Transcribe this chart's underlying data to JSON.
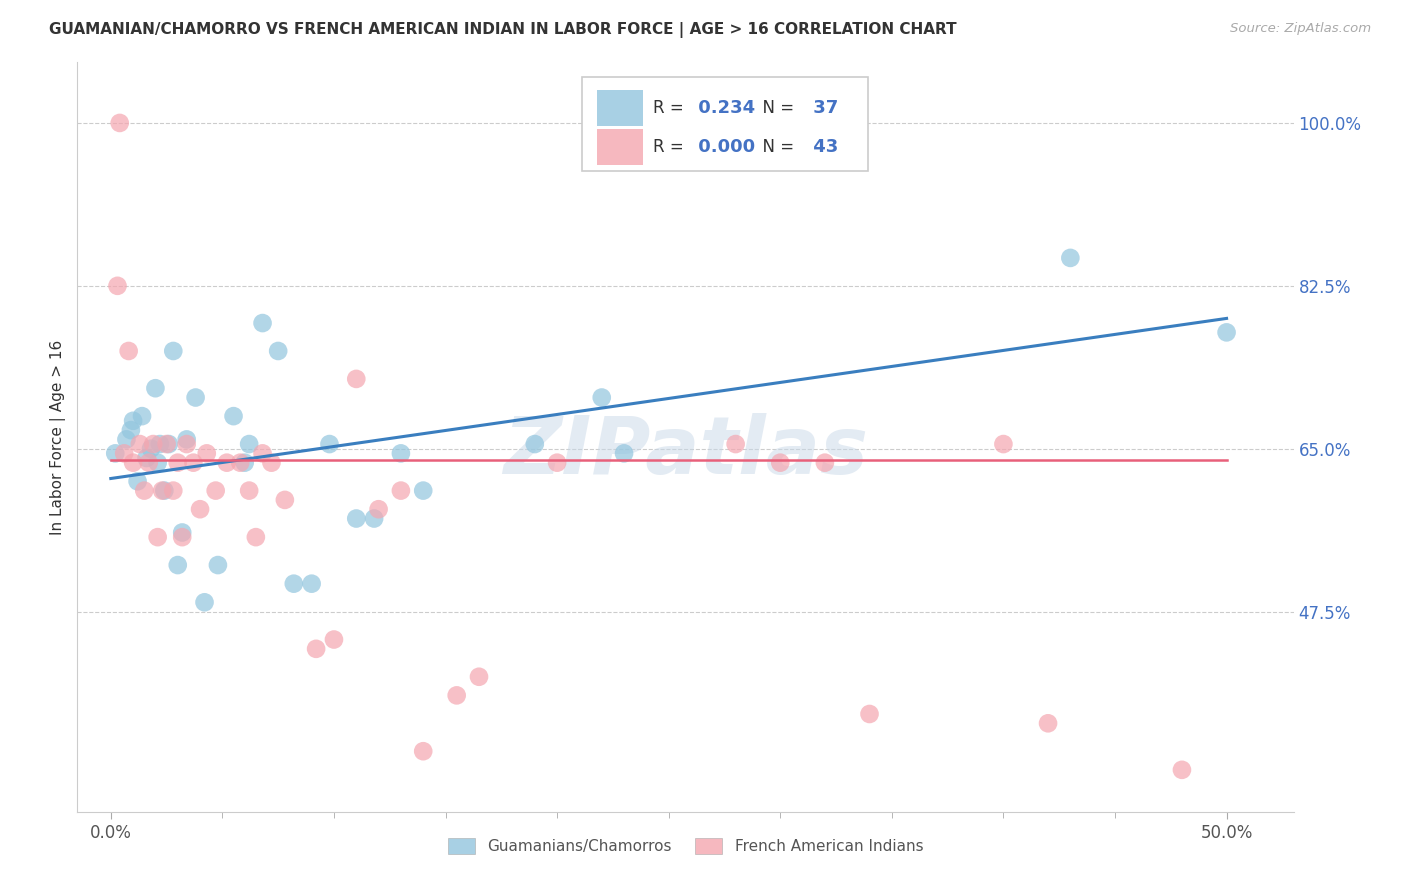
{
  "title": "GUAMANIAN/CHAMORRO VS FRENCH AMERICAN INDIAN IN LABOR FORCE | AGE > 16 CORRELATION CHART",
  "source": "Source: ZipAtlas.com",
  "ylabel_label": "In Labor Force | Age > 16",
  "x_tick_positions": [
    0.0,
    0.5
  ],
  "x_tick_labels": [
    "0.0%",
    "50.0%"
  ],
  "y_ticks": [
    0.475,
    0.65,
    0.825,
    1.0
  ],
  "y_tick_labels": [
    "47.5%",
    "65.0%",
    "82.5%",
    "100.0%"
  ],
  "xlim": [
    -0.015,
    0.53
  ],
  "ylim": [
    0.26,
    1.065
  ],
  "legend_blue_R": "0.234",
  "legend_blue_N": "37",
  "legend_pink_R": "0.000",
  "legend_pink_N": "43",
  "legend_label_blue": "Guamanians/Chamorros",
  "legend_label_pink": "French American Indians",
  "blue_color": "#92c5de",
  "pink_color": "#f4a6b0",
  "blue_line_color": "#3a7ebf",
  "pink_line_color": "#e8607a",
  "watermark": "ZIPatlas",
  "blue_x": [
    0.002,
    0.007,
    0.009,
    0.01,
    0.012,
    0.014,
    0.016,
    0.018,
    0.02,
    0.021,
    0.022,
    0.024,
    0.026,
    0.028,
    0.03,
    0.032,
    0.034,
    0.038,
    0.042,
    0.048,
    0.055,
    0.06,
    0.062,
    0.068,
    0.075,
    0.082,
    0.09,
    0.098,
    0.11,
    0.118,
    0.13,
    0.14,
    0.19,
    0.22,
    0.23,
    0.43,
    0.5
  ],
  "blue_y": [
    0.645,
    0.66,
    0.67,
    0.68,
    0.615,
    0.685,
    0.64,
    0.65,
    0.715,
    0.635,
    0.655,
    0.605,
    0.655,
    0.755,
    0.525,
    0.56,
    0.66,
    0.705,
    0.485,
    0.525,
    0.685,
    0.635,
    0.655,
    0.785,
    0.755,
    0.505,
    0.505,
    0.655,
    0.575,
    0.575,
    0.645,
    0.605,
    0.655,
    0.705,
    0.645,
    0.855,
    0.775
  ],
  "pink_x": [
    0.003,
    0.006,
    0.008,
    0.01,
    0.013,
    0.015,
    0.017,
    0.019,
    0.021,
    0.023,
    0.025,
    0.028,
    0.03,
    0.032,
    0.034,
    0.037,
    0.04,
    0.043,
    0.047,
    0.052,
    0.058,
    0.062,
    0.065,
    0.068,
    0.072,
    0.078,
    0.092,
    0.1,
    0.11,
    0.12,
    0.13,
    0.14,
    0.155,
    0.165,
    0.2,
    0.28,
    0.3,
    0.32,
    0.34,
    0.4,
    0.42,
    0.48,
    0.004
  ],
  "pink_y": [
    0.825,
    0.645,
    0.755,
    0.635,
    0.655,
    0.605,
    0.635,
    0.655,
    0.555,
    0.605,
    0.655,
    0.605,
    0.635,
    0.555,
    0.655,
    0.635,
    0.585,
    0.645,
    0.605,
    0.635,
    0.635,
    0.605,
    0.555,
    0.645,
    0.635,
    0.595,
    0.435,
    0.445,
    0.725,
    0.585,
    0.605,
    0.325,
    0.385,
    0.405,
    0.635,
    0.655,
    0.635,
    0.635,
    0.365,
    0.655,
    0.355,
    0.305,
    1.0
  ],
  "blue_trendline_x": [
    0.0,
    0.5
  ],
  "blue_trendline_y": [
    0.618,
    0.79
  ],
  "pink_trendline_x": [
    0.0,
    0.5
  ],
  "pink_trendline_y": [
    0.638,
    0.638
  ],
  "background_color": "#ffffff",
  "grid_color": "#cccccc",
  "minor_tick_count": 9
}
